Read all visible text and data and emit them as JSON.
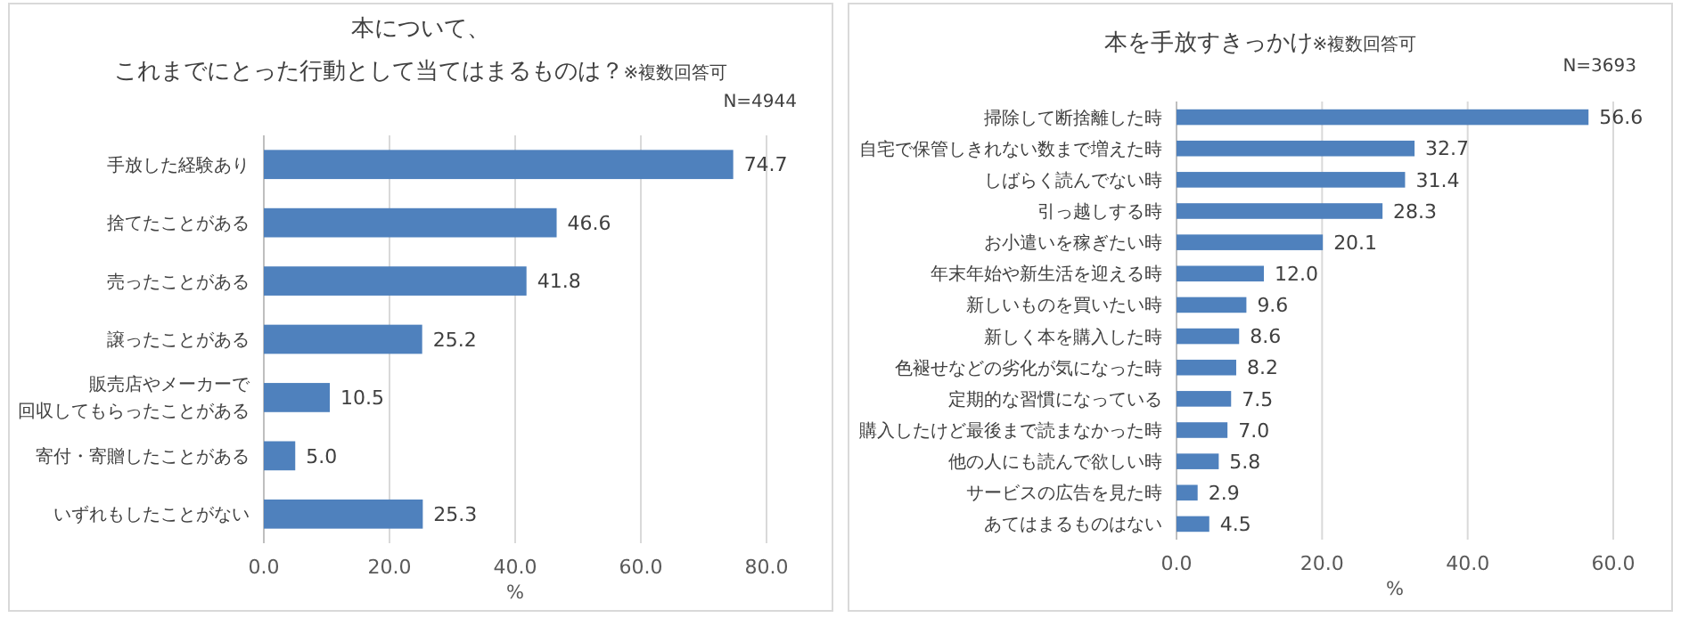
{
  "chart_data": [
    {
      "type": "bar",
      "orientation": "horizontal",
      "title": "本について、これまでにとった行動として当てはまるものは？",
      "subtitle": "※複数回答可",
      "xlabel": "%",
      "annotations": [
        "N=4944"
      ],
      "categories": [
        "手放した経験あり",
        "捨てたことがある",
        "売ったことがある",
        "譲ったことがある",
        "販売店やメーカーで回収してもらったことがある",
        "寄付・寄贈したことがある",
        "いずれもしたことがない"
      ],
      "values": [
        74.7,
        46.6,
        41.8,
        25.2,
        10.5,
        5.0,
        25.3
      ],
      "color": "#4f81bd",
      "value_labels": [
        "74.7",
        "46.6",
        "41.8",
        "25.2",
        "10.5",
        "5.0",
        "25.3"
      ],
      "xlim": [
        0,
        80
      ],
      "xticks": [
        {
          "value": 0,
          "label": "0.0"
        },
        {
          "value": 20,
          "label": "20.0"
        },
        {
          "value": 40,
          "label": "40.0"
        },
        {
          "value": 60,
          "label": "60.0"
        },
        {
          "value": 80,
          "label": "80.0"
        }
      ],
      "grid": "x"
    },
    {
      "type": "bar",
      "orientation": "horizontal",
      "title": "本を手放すきっかけ",
      "subtitle": "※複数回答可",
      "xlabel": "%",
      "annotations": [
        "N=3693"
      ],
      "categories": [
        "掃除して断捨離した時",
        "自宅で保管しきれない数まで増えた時",
        "しばらく読んでない時",
        "引っ越しする時",
        "お小遣いを稼ぎたい時",
        "年末年始や新生活を迎える時",
        "新しいものを買いたい時",
        "新しく本を購入した時",
        "色褪せなどの劣化が気になった時",
        "定期的な習慣になっている",
        "購入したけど最後まで読まなかった時",
        "他の人にも読んで欲しい時",
        "サービスの広告を見た時",
        "あてはまるものはない"
      ],
      "values": [
        56.6,
        32.7,
        31.4,
        28.3,
        20.1,
        12.0,
        9.6,
        8.6,
        8.2,
        7.5,
        7.0,
        5.8,
        2.9,
        4.5
      ],
      "color": "#4f81bd",
      "value_labels": [
        "56.6",
        "32.7",
        "31.4",
        "28.3",
        "20.1",
        "12.0",
        "9.6",
        "8.6",
        "8.2",
        "7.5",
        "7.0",
        "5.8",
        "2.9",
        "4.5"
      ],
      "xlim": [
        0,
        60
      ],
      "xticks": [
        {
          "value": 0,
          "label": "0.0"
        },
        {
          "value": 20,
          "label": "20.0"
        },
        {
          "value": 40,
          "label": "40.0"
        },
        {
          "value": 60,
          "label": "60.0"
        }
      ],
      "grid": "x"
    }
  ]
}
